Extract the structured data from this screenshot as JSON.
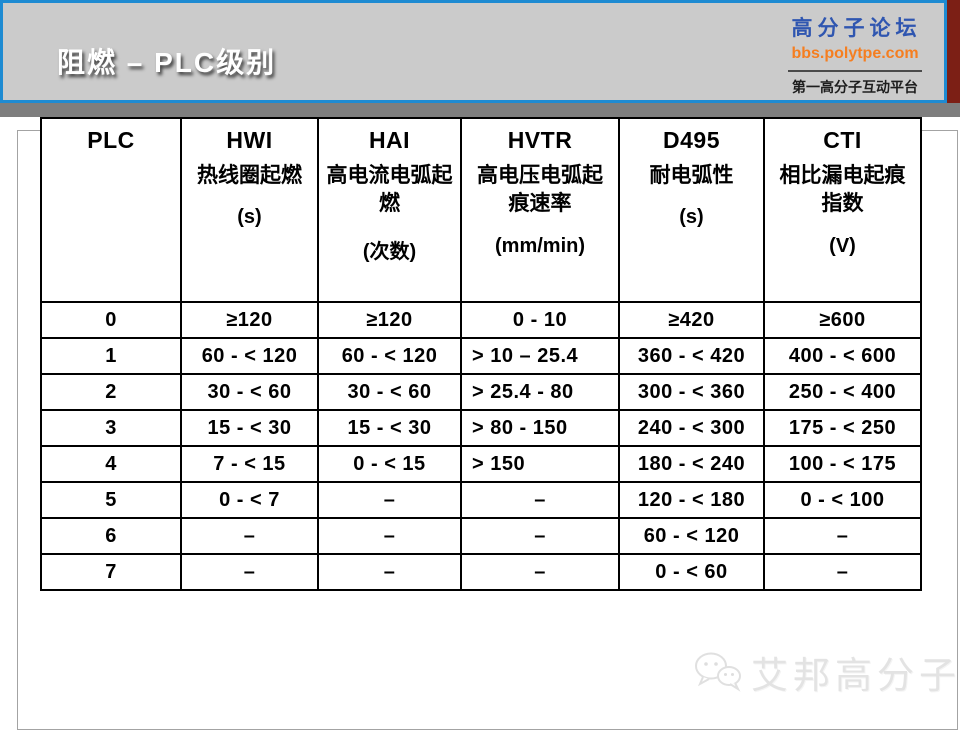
{
  "header": {
    "title": "阻燃 – PLC级别",
    "logo": {
      "name": "高分子论坛",
      "url": "bbs.polytpe.com",
      "tagline": "第一高分子互动平台"
    }
  },
  "colors": {
    "accent_blue": "#1e8bd2",
    "band_gray": "#cbcbcb",
    "strip_gray": "#7e7e7e",
    "corner_maroon": "#7c1f15",
    "logo_blue": "#2f56b0",
    "logo_orange": "#f57e20"
  },
  "table": {
    "columns": [
      {
        "acronym": "PLC",
        "desc": "",
        "unit": ""
      },
      {
        "acronym": "HWI",
        "desc": "热线圈起燃",
        "unit": "(s)"
      },
      {
        "acronym": "HAI",
        "desc": "高电流电弧起燃",
        "unit": "(次数)"
      },
      {
        "acronym": "HVTR",
        "desc": "高电压电弧起痕速率",
        "unit": "(mm/min)"
      },
      {
        "acronym": "D495",
        "desc": "耐电弧性",
        "unit": "(s)"
      },
      {
        "acronym": "CTI",
        "desc": "相比漏电起痕指数",
        "unit": "(V)"
      }
    ],
    "rows": [
      {
        "level": "0",
        "cells": [
          "≥120",
          "≥120",
          "0 - 10",
          "≥420",
          "≥600"
        ]
      },
      {
        "level": "1",
        "cells": [
          "60 - < 120",
          "60 - < 120",
          "> 10 – 25.4",
          "360 - < 420",
          "400 - < 600"
        ]
      },
      {
        "level": "2",
        "cells": [
          "30 - < 60",
          "30 - < 60",
          "> 25.4 - 80",
          "300 - < 360",
          "250 - < 400"
        ]
      },
      {
        "level": "3",
        "cells": [
          "15 - < 30",
          "15 - < 30",
          "> 80 - 150",
          "240 - < 300",
          "175 - < 250"
        ]
      },
      {
        "level": "4",
        "cells": [
          "7 - < 15",
          "0 - < 15",
          "> 150",
          "180 - < 240",
          "100 - < 175"
        ]
      },
      {
        "level": "5",
        "cells": [
          "0 - < 7",
          "–",
          "–",
          "120 - < 180",
          "0 - < 100"
        ]
      },
      {
        "level": "6",
        "cells": [
          "–",
          "–",
          "–",
          "60 - < 120",
          "–"
        ]
      },
      {
        "level": "7",
        "cells": [
          "–",
          "–",
          "–",
          "0 - < 60",
          "–"
        ]
      }
    ]
  },
  "watermark": {
    "text": "艾邦高分子",
    "icon": "wechat-icon"
  }
}
